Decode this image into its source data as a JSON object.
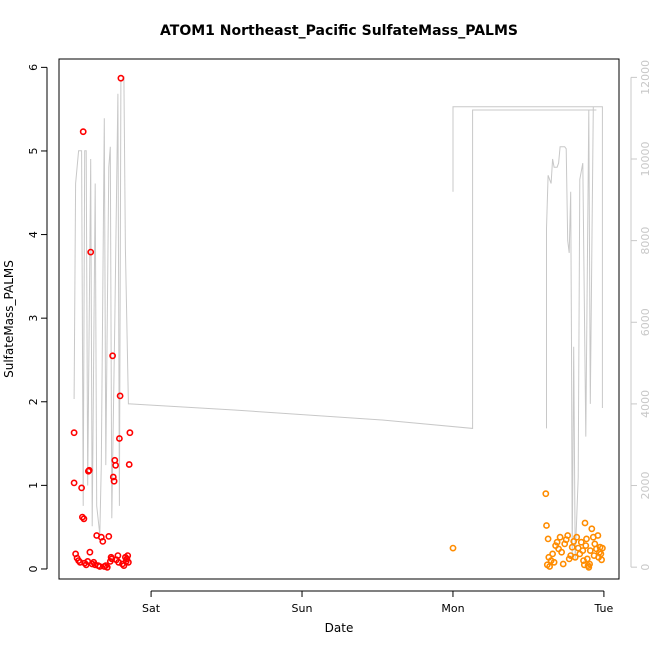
{
  "chart_data": {
    "type": "scatter",
    "title": "ATOM1 Northeast_Pacific SulfateMass_PALMS",
    "xlabel": "Date",
    "ylabel": "SulfateMass_PALMS",
    "x_ticks": [
      "Sat",
      "Sun",
      "Mon",
      "Tue"
    ],
    "x_tick_days": [
      1,
      2,
      3,
      4
    ],
    "xlim_days": [
      0.39,
      4.1
    ],
    "ylim": [
      -0.12,
      6.1
    ],
    "y_ticks": [
      "0",
      "1",
      "2",
      "3",
      "4",
      "5",
      "6"
    ],
    "y_tick_values": [
      0,
      1,
      2,
      3,
      4,
      5,
      6
    ],
    "y2_ticks": [
      "0",
      "2000",
      "4000",
      "6000",
      "8000",
      "10000",
      "12000"
    ],
    "y2_tick_values": [
      0,
      2000,
      4000,
      6000,
      8000,
      10000,
      12000
    ],
    "y2lim": [
      -290,
      12450
    ],
    "colors": {
      "series1": "#ff0000",
      "series2": "#ff8c00",
      "altitude": "#c8c8c8"
    },
    "series": [
      {
        "color": "#ff0000",
        "points": [
          [
            0.49,
            1.63
          ],
          [
            0.49,
            1.03
          ],
          [
            0.5,
            0.18
          ],
          [
            0.51,
            0.13
          ],
          [
            0.52,
            0.1
          ],
          [
            0.53,
            0.08
          ],
          [
            0.54,
            0.97
          ],
          [
            0.545,
            0.62
          ],
          [
            0.55,
            5.23
          ],
          [
            0.555,
            0.6
          ],
          [
            0.56,
            0.07
          ],
          [
            0.57,
            0.05
          ],
          [
            0.58,
            0.09
          ],
          [
            0.585,
            1.17
          ],
          [
            0.59,
            1.18
          ],
          [
            0.595,
            0.2
          ],
          [
            0.6,
            3.79
          ],
          [
            0.61,
            0.06
          ],
          [
            0.62,
            0.08
          ],
          [
            0.63,
            0.05
          ],
          [
            0.64,
            0.4
          ],
          [
            0.65,
            0.04
          ],
          [
            0.66,
            0.03
          ],
          [
            0.67,
            0.38
          ],
          [
            0.68,
            0.33
          ],
          [
            0.69,
            0.03
          ],
          [
            0.7,
            0.04
          ],
          [
            0.71,
            0.02
          ],
          [
            0.72,
            0.39
          ],
          [
            0.73,
            0.09
          ],
          [
            0.735,
            0.14
          ],
          [
            0.74,
            0.12
          ],
          [
            0.745,
            2.55
          ],
          [
            0.75,
            1.1
          ],
          [
            0.755,
            1.05
          ],
          [
            0.76,
            1.3
          ],
          [
            0.765,
            1.24
          ],
          [
            0.77,
            0.11
          ],
          [
            0.78,
            0.16
          ],
          [
            0.785,
            0.08
          ],
          [
            0.79,
            1.56
          ],
          [
            0.795,
            2.07
          ],
          [
            0.8,
            5.87
          ],
          [
            0.81,
            0.06
          ],
          [
            0.82,
            0.04
          ],
          [
            0.83,
            0.14
          ],
          [
            0.835,
            0.09
          ],
          [
            0.84,
            0.12
          ],
          [
            0.845,
            0.16
          ],
          [
            0.85,
            0.08
          ],
          [
            0.855,
            1.25
          ],
          [
            0.86,
            1.63
          ]
        ]
      },
      {
        "color": "#ff8c00",
        "points": [
          [
            3.0,
            0.25
          ],
          [
            3.615,
            0.9
          ],
          [
            3.62,
            0.52
          ],
          [
            3.63,
            0.36
          ],
          [
            3.625,
            0.05
          ],
          [
            3.635,
            0.14
          ],
          [
            3.64,
            0.03
          ],
          [
            3.65,
            0.1
          ],
          [
            3.66,
            0.18
          ],
          [
            3.67,
            0.08
          ],
          [
            3.68,
            0.28
          ],
          [
            3.69,
            0.32
          ],
          [
            3.7,
            0.24
          ],
          [
            3.71,
            0.38
          ],
          [
            3.72,
            0.2
          ],
          [
            3.73,
            0.06
          ],
          [
            3.74,
            0.3
          ],
          [
            3.75,
            0.35
          ],
          [
            3.76,
            0.4
          ],
          [
            3.77,
            0.12
          ],
          [
            3.78,
            0.16
          ],
          [
            3.79,
            0.26
          ],
          [
            3.8,
            0.33
          ],
          [
            3.81,
            0.14
          ],
          [
            3.82,
            0.38
          ],
          [
            3.83,
            0.25
          ],
          [
            3.84,
            0.18
          ],
          [
            3.85,
            0.32
          ],
          [
            3.86,
            0.22
          ],
          [
            3.865,
            0.1
          ],
          [
            3.87,
            0.05
          ],
          [
            3.875,
            0.55
          ],
          [
            3.88,
            0.28
          ],
          [
            3.885,
            0.36
          ],
          [
            3.89,
            0.12
          ],
          [
            3.895,
            0.04
          ],
          [
            3.9,
            0.02
          ],
          [
            3.905,
            0.06
          ],
          [
            3.91,
            0.22
          ],
          [
            3.92,
            0.48
          ],
          [
            3.93,
            0.38
          ],
          [
            3.935,
            0.16
          ],
          [
            3.94,
            0.3
          ],
          [
            3.95,
            0.24
          ],
          [
            3.96,
            0.4
          ],
          [
            3.965,
            0.14
          ],
          [
            3.97,
            0.2
          ],
          [
            3.975,
            0.26
          ],
          [
            3.98,
            0.18
          ],
          [
            3.985,
            0.11
          ],
          [
            3.99,
            0.25
          ]
        ]
      }
    ],
    "altitude": [
      [
        0.49,
        4120
      ],
      [
        0.5,
        9400
      ],
      [
        0.52,
        10200
      ],
      [
        0.54,
        10200
      ],
      [
        0.55,
        1500
      ],
      [
        0.56,
        10200
      ],
      [
        0.57,
        10200
      ],
      [
        0.58,
        2000
      ],
      [
        0.6,
        10000
      ],
      [
        0.61,
        1000
      ],
      [
        0.63,
        9400
      ],
      [
        0.64,
        1500
      ],
      [
        0.66,
        800
      ],
      [
        0.67,
        2500
      ],
      [
        0.69,
        11000
      ],
      [
        0.7,
        2500
      ],
      [
        0.72,
        9800
      ],
      [
        0.73,
        10300
      ],
      [
        0.74,
        1200
      ],
      [
        0.76,
        6000
      ],
      [
        0.78,
        11600
      ],
      [
        0.79,
        1500
      ],
      [
        0.8,
        11900
      ],
      [
        0.82,
        12000
      ],
      [
        0.83,
        7800
      ],
      [
        0.85,
        4000
      ],
      [
        0.86,
        4000
      ],
      [
        1.55,
        3850
      ],
      [
        2.55,
        3600
      ],
      [
        3.13,
        3400
      ],
      [
        3.13,
        11200
      ],
      [
        3.95,
        11200
      ]
    ],
    "altitude2": [
      [
        3.0,
        9200
      ],
      [
        3.0,
        11280
      ],
      [
        3.99,
        11280
      ],
      [
        3.99,
        3900
      ]
    ],
    "altitude3": [
      [
        3.62,
        3400
      ],
      [
        3.62,
        8300
      ],
      [
        3.63,
        9600
      ],
      [
        3.64,
        9500
      ],
      [
        3.65,
        9400
      ],
      [
        3.66,
        10000
      ],
      [
        3.67,
        9800
      ],
      [
        3.68,
        9800
      ],
      [
        3.69,
        9800
      ],
      [
        3.7,
        9900
      ],
      [
        3.71,
        10300
      ],
      [
        3.72,
        10300
      ],
      [
        3.73,
        10300
      ],
      [
        3.74,
        10300
      ],
      [
        3.75,
        10250
      ],
      [
        3.76,
        8000
      ],
      [
        3.77,
        7700
      ],
      [
        3.78,
        9200
      ],
      [
        3.785,
        5400
      ],
      [
        3.79,
        200
      ],
      [
        3.8,
        5400
      ],
      [
        3.81,
        200
      ],
      [
        3.83,
        2200
      ],
      [
        3.84,
        9500
      ],
      [
        3.86,
        9900
      ],
      [
        3.88,
        3200
      ],
      [
        3.9,
        11200
      ],
      [
        3.91,
        4000
      ],
      [
        3.93,
        11280
      ]
    ]
  }
}
